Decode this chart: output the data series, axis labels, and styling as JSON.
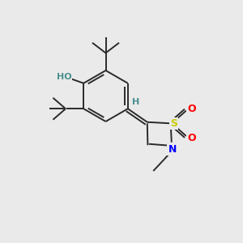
{
  "bg_color": "#eaeaea",
  "bond_color": "#2a2a2a",
  "line_width": 1.4,
  "atom_colors": {
    "O": "#ff0000",
    "S": "#cccc00",
    "N": "#0000ff",
    "H_teal": "#4a8f8f",
    "C": "#2a2a2a"
  },
  "figsize": [
    3.0,
    3.0
  ],
  "dpi": 100
}
